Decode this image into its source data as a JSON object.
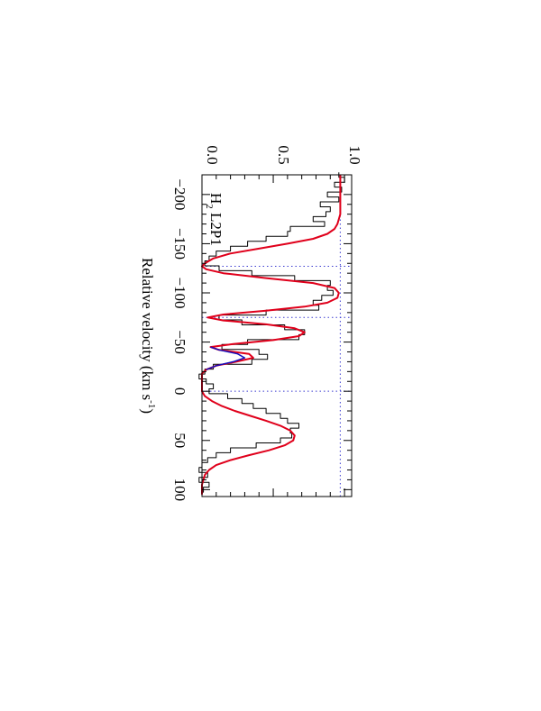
{
  "chart_data": {
    "type": "line",
    "orientation": "rotated-90-clockwise",
    "xlabel": "Relative velocity (km s",
    "xlabel_sup": "-1",
    "xlabel_close": ")",
    "ylabel": "",
    "xlim": [
      -220,
      107
    ],
    "ylim": [
      0.0,
      1.05
    ],
    "x_ticks": [
      -200,
      -150,
      -100,
      -50,
      0,
      50,
      100
    ],
    "x_tick_labels": [
      "−200",
      "−150",
      "−100",
      "−50",
      "0",
      "50",
      "100"
    ],
    "y_ticks": [
      0.0,
      0.5,
      1.0
    ],
    "y_tick_labels": [
      "0.0",
      "0.5",
      "1.0"
    ],
    "continuum_level": 0.97,
    "zero_level": 0.0,
    "component_velocities": [
      -127,
      -75,
      0
    ],
    "annotation": {
      "base": "H",
      "sub": "2",
      "rest": " L2P1"
    },
    "colors": {
      "data": "#000000",
      "model": "#e0001b",
      "blend": "#1010c0",
      "guides": "#3a3ad0",
      "axes": "#000000"
    },
    "series": [
      {
        "role": "data",
        "style": "histogram",
        "x": [
          -220,
          -215,
          -210,
          -205,
          -200,
          -195,
          -190,
          -185,
          -180,
          -175,
          -170,
          -165,
          -160,
          -155,
          -150,
          -145,
          -140,
          -135,
          -130,
          -125,
          -120,
          -115,
          -110,
          -105,
          -100,
          -95,
          -90,
          -85,
          -80,
          -75,
          -70,
          -65,
          -60,
          -55,
          -50,
          -45,
          -40,
          -35,
          -30,
          -25,
          -20,
          -15,
          -10,
          -5,
          0,
          5,
          10,
          15,
          20,
          25,
          30,
          35,
          40,
          45,
          50,
          55,
          60,
          65,
          70,
          75,
          80,
          85,
          90,
          95,
          100,
          105
        ],
        "y": [
          0.96,
          1.0,
          0.93,
          0.98,
          0.88,
          0.96,
          0.83,
          0.9,
          0.87,
          0.78,
          0.86,
          0.62,
          0.6,
          0.45,
          0.32,
          0.2,
          0.1,
          0.05,
          0.02,
          0.12,
          0.35,
          0.65,
          0.9,
          0.88,
          0.92,
          0.84,
          0.78,
          0.82,
          0.45,
          0.12,
          0.28,
          0.58,
          0.72,
          0.68,
          0.32,
          0.14,
          0.4,
          0.46,
          0.35,
          0.08,
          0.02,
          -0.02,
          0.03,
          0.08,
          0.05,
          0.18,
          0.28,
          0.36,
          0.45,
          0.55,
          0.6,
          0.68,
          0.62,
          0.63,
          0.55,
          0.38,
          0.2,
          0.1,
          0.04,
          0.0,
          -0.02,
          0.04,
          -0.02,
          0.05,
          0.01,
          0.0
        ]
      },
      {
        "role": "model",
        "style": "line",
        "x": [
          -220,
          -212,
          -205,
          -200,
          -195,
          -190,
          -185,
          -180,
          -175,
          -170,
          -165,
          -160,
          -155,
          -150,
          -145,
          -140,
          -135,
          -130,
          -127,
          -124,
          -120,
          -115,
          -110,
          -105,
          -100,
          -95,
          -90,
          -86,
          -82,
          -78,
          -75,
          -72,
          -68,
          -64,
          -60,
          -56,
          -52,
          -48,
          -45,
          -42,
          -38,
          -34,
          -30,
          -26,
          -22,
          -18,
          -14,
          -10,
          -5,
          0,
          5,
          10,
          15,
          20,
          25,
          30,
          35,
          40,
          45,
          50,
          55,
          60,
          65,
          70,
          75,
          80,
          85,
          90,
          95,
          100,
          105
        ],
        "y": [
          0.97,
          0.97,
          0.97,
          0.97,
          0.97,
          0.97,
          0.97,
          0.97,
          0.96,
          0.95,
          0.93,
          0.88,
          0.78,
          0.6,
          0.4,
          0.2,
          0.08,
          0.02,
          0.0,
          0.03,
          0.15,
          0.45,
          0.78,
          0.93,
          0.96,
          0.95,
          0.88,
          0.72,
          0.45,
          0.15,
          0.04,
          0.15,
          0.45,
          0.65,
          0.72,
          0.68,
          0.5,
          0.22,
          0.06,
          0.12,
          0.33,
          0.36,
          0.24,
          0.1,
          0.03,
          0.0,
          0.0,
          0.0,
          0.0,
          0.0,
          0.02,
          0.07,
          0.14,
          0.23,
          0.34,
          0.45,
          0.55,
          0.62,
          0.65,
          0.64,
          0.58,
          0.47,
          0.33,
          0.2,
          0.1,
          0.05,
          0.02,
          0.01,
          0.0,
          0.0,
          0.0
        ]
      },
      {
        "role": "blend",
        "style": "line",
        "x": [
          -45,
          -42,
          -38,
          -34,
          -30,
          -26,
          -22
        ],
        "y": [
          0.06,
          0.12,
          0.25,
          0.3,
          0.22,
          0.1,
          0.03
        ]
      }
    ]
  }
}
